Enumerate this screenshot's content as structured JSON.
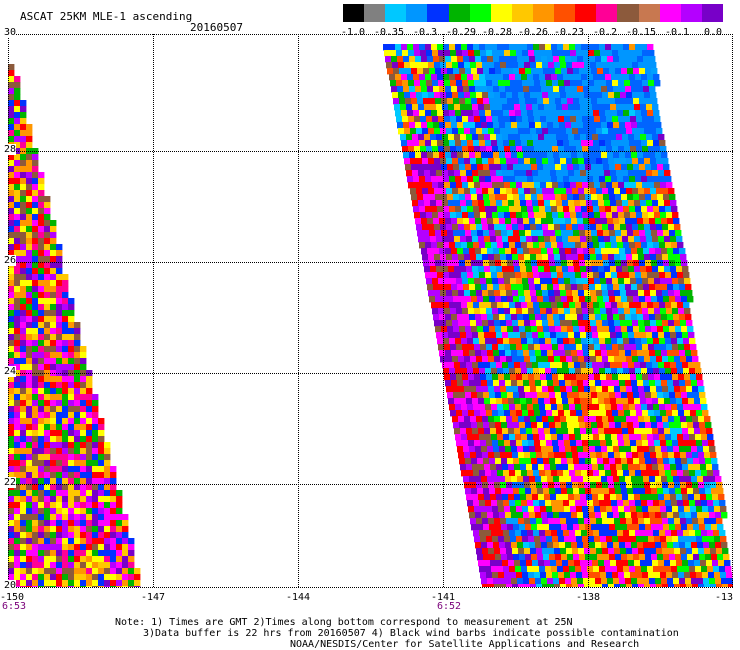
{
  "title": "ASCAT 25KM MLE-1 ascending",
  "date": "20160507",
  "colorbar": {
    "colors": [
      "#000000",
      "#808080",
      "#00c8ff",
      "#0096ff",
      "#0032ff",
      "#00b400",
      "#00ff00",
      "#ffff00",
      "#ffc800",
      "#ff9600",
      "#ff5000",
      "#ff0000",
      "#ff0096",
      "#8c5a3c",
      "#c87850",
      "#ff00ff",
      "#b400ff",
      "#7800c8"
    ],
    "labels": [
      "-1.0",
      "-0.35",
      "-0.3",
      "-0.29",
      "-0.28",
      "-0.26",
      "-0.23",
      "-0.2",
      "-0.15",
      "-0.1",
      "0.0"
    ]
  },
  "y_axis": {
    "labels": [
      "30",
      "28",
      "26",
      "24",
      "22",
      "20"
    ]
  },
  "x_axis": {
    "labels": [
      "-150",
      "-147",
      "-144",
      "-141",
      "-138",
      "-13"
    ]
  },
  "times": {
    "left": "6:53",
    "right": "6:52"
  },
  "notes": [
    "Note: 1) Times are GMT 2)Times along bottom correspond to measurement at 25N",
    "3)Data buffer is 22 hrs from 20160507 4) Black wind barbs indicate possible contamination",
    "NOAA/NESDIS/Center for Satellite Applications and Research"
  ]
}
